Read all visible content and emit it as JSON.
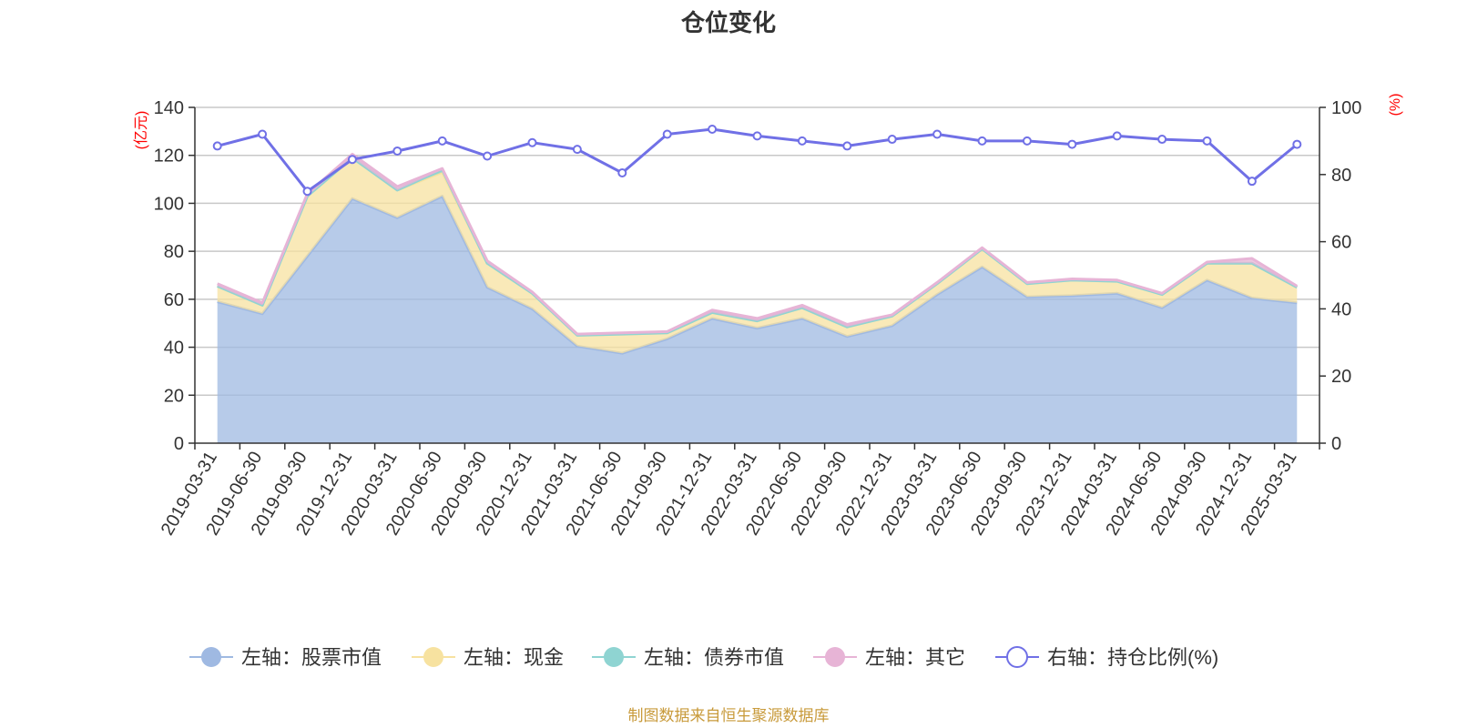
{
  "chart_data": {
    "type": "area",
    "title": "仓位变化",
    "left_axis_unit": "(亿元)",
    "right_axis_unit": "(%)",
    "left_ylim": [
      0,
      140
    ],
    "left_ticks": [
      0,
      20,
      40,
      60,
      80,
      100,
      120,
      140
    ],
    "right_ylim": [
      0,
      100
    ],
    "right_ticks": [
      0,
      20,
      40,
      60,
      80,
      100
    ],
    "grid": true,
    "legend_position": "bottom",
    "categories": [
      "2019-03-31",
      "2019-06-30",
      "2019-09-30",
      "2019-12-31",
      "2020-03-31",
      "2020-06-30",
      "2020-09-30",
      "2020-12-31",
      "2021-03-31",
      "2021-06-30",
      "2021-09-30",
      "2021-12-31",
      "2022-03-31",
      "2022-06-30",
      "2022-09-30",
      "2022-12-31",
      "2023-03-31",
      "2023-06-30",
      "2023-09-30",
      "2023-12-31",
      "2024-03-31",
      "2024-06-30",
      "2024-09-30",
      "2024-12-31",
      "2025-03-31"
    ],
    "stacked_series": [
      {
        "name": "左轴：股票市值",
        "axis": "left",
        "color": "#9fb9e2",
        "values": [
          59,
          54,
          78,
          102,
          94,
          103,
          65,
          56,
          40.5,
          37.5,
          43.5,
          52,
          48,
          52,
          44.5,
          49,
          62,
          73.5,
          61,
          61.5,
          62.5,
          56.5,
          68,
          60.5,
          58.5
        ]
      },
      {
        "name": "左轴：现金",
        "axis": "left",
        "color": "#f7e2a0",
        "values": [
          6.5,
          3.5,
          25,
          17,
          11.5,
          10,
          10,
          6.5,
          4.5,
          8,
          2.5,
          2.5,
          3,
          4.5,
          4,
          4,
          4.5,
          7.5,
          5.5,
          6.5,
          5,
          5.5,
          7,
          14.5,
          6.5
        ]
      },
      {
        "name": "左轴：债券市值",
        "axis": "left",
        "color": "#8fd4d2",
        "values": [
          0,
          0,
          0,
          0,
          0,
          1,
          0,
          0,
          0,
          0,
          0,
          0,
          0,
          0,
          0,
          0,
          0,
          0,
          0,
          0,
          0,
          0,
          0,
          0,
          0
        ]
      },
      {
        "name": "左轴：其它",
        "axis": "left",
        "color": "#e7b4d6",
        "values": [
          1,
          1,
          1,
          1.5,
          1.5,
          0.5,
          1,
          0.5,
          0.5,
          0.5,
          0.5,
          1,
          1,
          1,
          1,
          0.5,
          0.5,
          0.5,
          0.5,
          0.5,
          0.5,
          0.5,
          0.5,
          2,
          0.5
        ]
      }
    ],
    "line_series": {
      "name": "右轴：持仓比例(%)",
      "axis": "right",
      "color": "#7070e6",
      "values": [
        88.5,
        92,
        75,
        84.5,
        87,
        90,
        85.5,
        89.5,
        87.5,
        80.5,
        92,
        93.5,
        91.5,
        90,
        88.5,
        90.5,
        92,
        90,
        90,
        89,
        91.5,
        90.5,
        90,
        78,
        89
      ]
    }
  },
  "source_note": "制图数据来自恒生聚源数据库"
}
